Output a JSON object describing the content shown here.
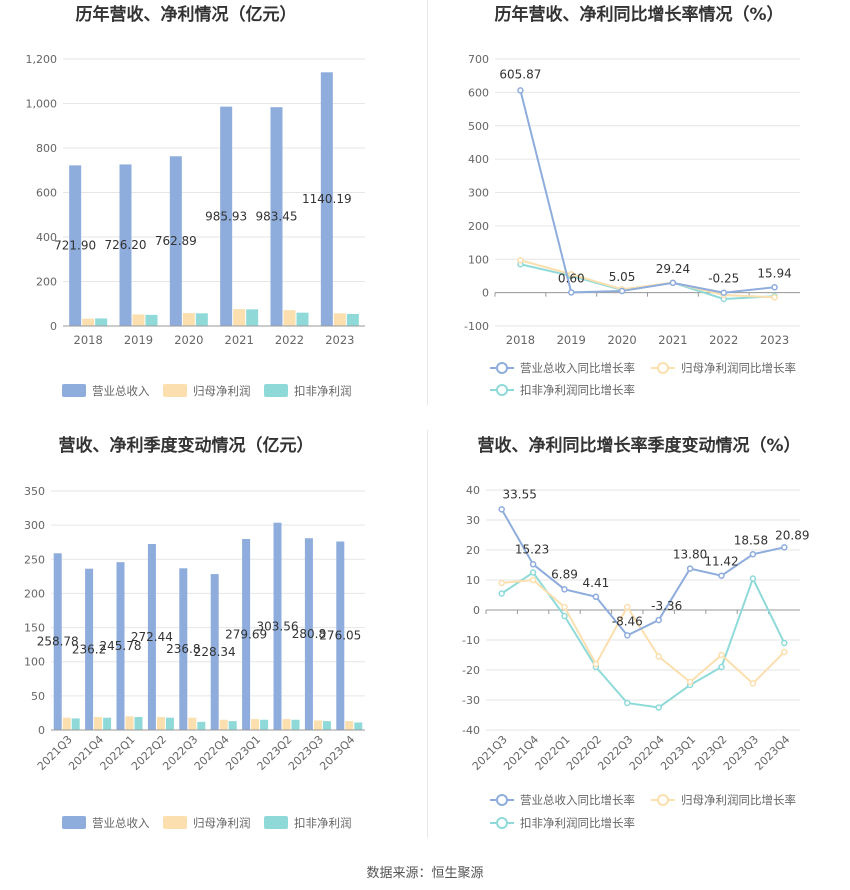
{
  "colors": {
    "revenue": "#8eacdc",
    "net_profit": "#fbdfae",
    "deducted_profit": "#8fdad9",
    "line_rev": "#8eacdc",
    "line_np": "#fbdfae",
    "line_dp": "#8fdad9",
    "grid": "#e6e6e6",
    "axis": "#666666",
    "text": "#333333"
  },
  "source": "数据来源：恒生聚源",
  "chart_data": [
    {
      "id": "annual_bar",
      "type": "bar",
      "title": "历年营收、净利情况（亿元）",
      "categories": [
        "2018",
        "2019",
        "2020",
        "2021",
        "2022",
        "2023"
      ],
      "series": [
        {
          "name": "营业总收入",
          "values": [
            721.9,
            726.2,
            762.89,
            985.93,
            983.45,
            1140.19
          ]
        },
        {
          "name": "归母净利润",
          "values": [
            33,
            52,
            58,
            76,
            71,
            57
          ]
        },
        {
          "name": "扣非净利润",
          "values": [
            34,
            50,
            57,
            75,
            60,
            54
          ]
        }
      ],
      "labels": [
        "721.90",
        "726.20",
        "762.89",
        "985.93",
        "983.45",
        "1140.19"
      ],
      "yticks": [
        "0",
        "200",
        "400",
        "600",
        "800",
        "1,000",
        "1,200"
      ],
      "ylim": [
        0,
        1200
      ]
    },
    {
      "id": "annual_line",
      "type": "line",
      "title": "历年营收、净利同比增长率情况（%）",
      "categories": [
        "2018",
        "2019",
        "2020",
        "2021",
        "2022",
        "2023"
      ],
      "series": [
        {
          "name": "营业总收入同比增长率",
          "values": [
            605.87,
            0.6,
            5.05,
            29.24,
            -0.25,
            15.94
          ]
        },
        {
          "name": "归母净利润同比增长率",
          "values": [
            97,
            55,
            10,
            30,
            -7,
            -14
          ]
        },
        {
          "name": "扣非净利润同比增长率",
          "values": [
            85,
            50,
            8,
            30,
            -19,
            -11
          ]
        }
      ],
      "labels": [
        "605.87",
        "0.60",
        "5.05",
        "29.24",
        "-0.25",
        "15.94"
      ],
      "yticks": [
        "-100",
        "0",
        "100",
        "200",
        "300",
        "400",
        "500",
        "600",
        "700"
      ],
      "ylim": [
        -100,
        700
      ]
    },
    {
      "id": "quarter_bar",
      "type": "bar",
      "title": "营收、净利季度变动情况（亿元）",
      "categories": [
        "2021Q3",
        "2021Q4",
        "2022Q1",
        "2022Q2",
        "2022Q3",
        "2022Q4",
        "2023Q1",
        "2023Q2",
        "2023Q3",
        "2023Q4"
      ],
      "series": [
        {
          "name": "营业总收入",
          "values": [
            258.78,
            236.2,
            245.78,
            272.44,
            236.8,
            228.34,
            279.69,
            303.56,
            280.8,
            276.05
          ]
        },
        {
          "name": "归母净利润",
          "values": [
            18,
            19,
            20,
            19,
            18,
            15,
            16,
            16,
            14,
            13
          ]
        },
        {
          "name": "扣非净利润",
          "values": [
            17,
            18,
            19,
            18,
            12,
            13,
            15,
            15,
            13,
            11
          ]
        }
      ],
      "labels": [
        "258.78",
        "236.2",
        "245.78",
        "272.44",
        "236.8",
        "228.34",
        "279.69",
        "303.56",
        "280.8",
        "276.05"
      ],
      "yticks": [
        "0",
        "50",
        "100",
        "150",
        "200",
        "250",
        "300",
        "350"
      ],
      "ylim": [
        0,
        350
      ]
    },
    {
      "id": "quarter_line",
      "type": "line",
      "title": "营收、净利同比增长率季度变动情况（%）",
      "categories": [
        "2021Q3",
        "2021Q4",
        "2022Q1",
        "2022Q2",
        "2022Q3",
        "2022Q4",
        "2023Q1",
        "2023Q2",
        "2023Q3",
        "2023Q4"
      ],
      "series": [
        {
          "name": "营业总收入同比增长率",
          "values": [
            33.55,
            15.23,
            6.89,
            4.41,
            -8.46,
            -3.36,
            13.8,
            11.42,
            18.58,
            20.89
          ]
        },
        {
          "name": "归母净利润同比增长率",
          "values": [
            9,
            10,
            1,
            -18,
            1,
            -15.5,
            -24,
            -15,
            -24.5,
            -14
          ]
        },
        {
          "name": "扣非净利润同比增长率",
          "values": [
            5.5,
            12.5,
            -2,
            -19,
            -31,
            -32.5,
            -25,
            -19,
            10.5,
            -11
          ]
        }
      ],
      "labels": [
        "33.55",
        "15.23",
        "6.89",
        "4.41",
        "-8.46",
        "-3.36",
        "13.80",
        "11.42",
        "18.58",
        "20.89"
      ],
      "yticks": [
        "-40",
        "-30",
        "-20",
        "-10",
        "0",
        "10",
        "20",
        "30",
        "40"
      ],
      "ylim": [
        -40,
        40
      ]
    }
  ]
}
